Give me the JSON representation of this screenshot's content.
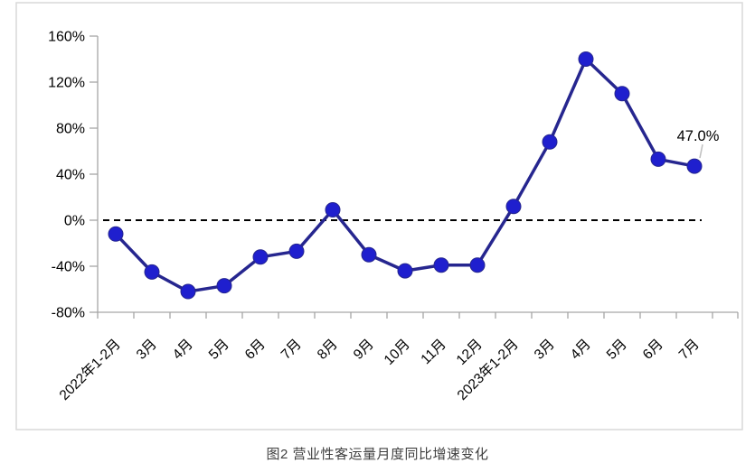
{
  "caption": "图2  营业性客运量月度同比增速变化",
  "colors": {
    "background": "#FFFFFF",
    "line": "#26268F",
    "marker": "#1F1FCE",
    "axis": "#A6A6A6",
    "border": "#D9D9D9",
    "zero_line": "#000000",
    "label_text": "#000000",
    "annotation_text": "#000000",
    "leader": "#BFBFBF",
    "caption_text": "#3F3F3F"
  },
  "chart_data": {
    "type": "line",
    "title": "图2  营业性客运量月度同比增速变化",
    "unit": "%",
    "categories": [
      "2022年1-2月",
      "3月",
      "4月",
      "5月",
      "6月",
      "7月",
      "8月",
      "9月",
      "10月",
      "11月",
      "12月",
      "2023年1-2月",
      "3月",
      "4月",
      "5月",
      "6月",
      "7月"
    ],
    "series": [
      {
        "name": "营业性客运量月度同比增速",
        "values": [
          -12,
          -45,
          -62,
          -57,
          -32,
          -27,
          9,
          -30,
          -44,
          -39,
          -39,
          12,
          68,
          140,
          110,
          53,
          47
        ]
      }
    ],
    "y_axis": {
      "tick_labels": [
        "160%",
        "120%",
        "80%",
        "40%",
        "0%",
        "-40%",
        "-80%"
      ],
      "tick_values": [
        160,
        120,
        80,
        40,
        0,
        -40,
        -80
      ],
      "range": [
        -80,
        160
      ]
    },
    "zero_line": {
      "style": "dashed",
      "value": 0
    },
    "annotation": {
      "text": "47.0%",
      "point_index": 16
    },
    "grid": false,
    "legend": "none",
    "marker": "circle"
  }
}
